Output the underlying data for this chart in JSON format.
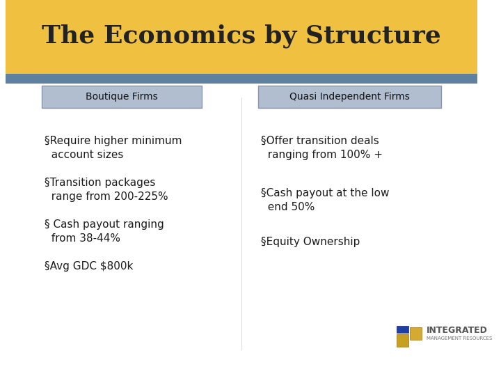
{
  "title": "The Economics by Structure",
  "title_color": "#222222",
  "header_bg_color": "#F0C040",
  "header_stripe_color": "#6080A0",
  "bg_color": "#FFFFFF",
  "boutique_header": "Boutique Firms",
  "quasi_header": "Quasi Independent Firms",
  "header_box_color": "#B0BED0",
  "boutique_bullets": [
    "§Require higher minimum\n  account sizes",
    "§Transition packages\n  range from 200-225%",
    "§ Cash payout ranging\n  from 38-44%",
    "§Avg GDC $800k"
  ],
  "quasi_bullets": [
    "§Offer transition deals\n  ranging from 100% +",
    "§Cash payout at the low\n  end 50%",
    "§Equity Ownership"
  ],
  "bullet_color": "#1A1A1A",
  "logo_text1": "INTEGRATED",
  "logo_text2": "MANAGEMENT RESOURCES"
}
